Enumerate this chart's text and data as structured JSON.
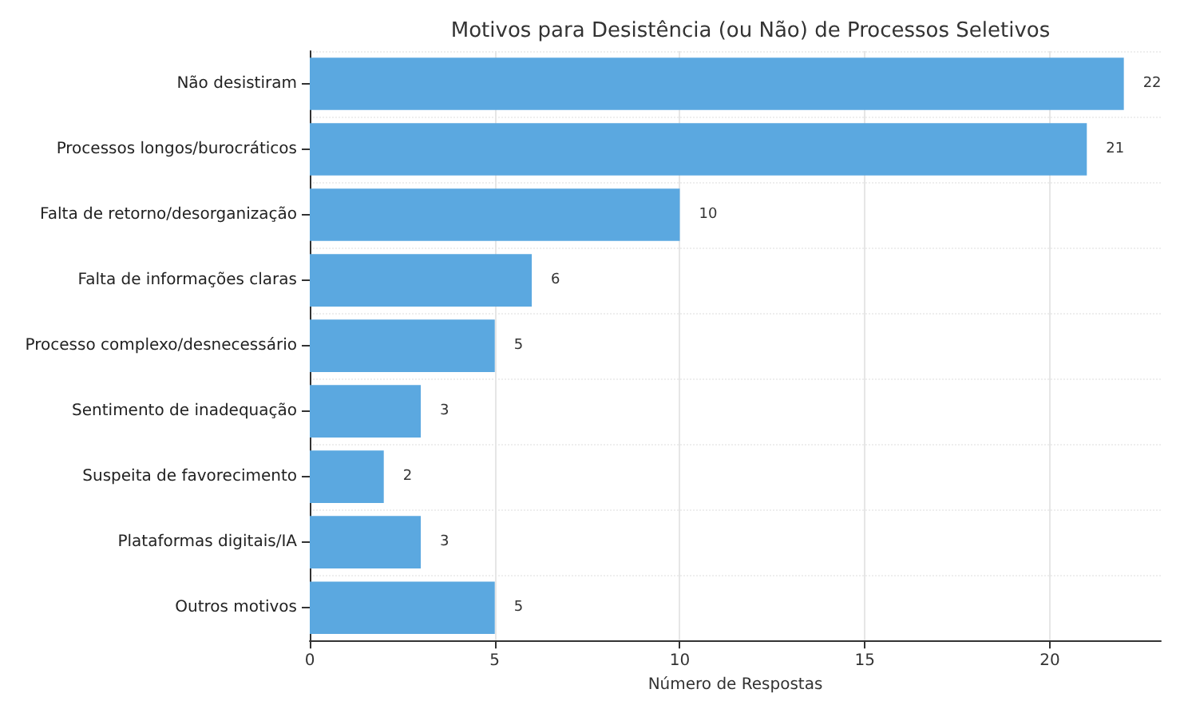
{
  "chart_data": {
    "type": "bar",
    "orientation": "horizontal",
    "title": "Motivos para Desistência (ou Não) de Processos Seletivos",
    "xlabel": "Número de Respostas",
    "categories": [
      "Não desistiram",
      "Processos longos/burocráticos",
      "Falta de retorno/desorganização",
      "Falta de informações claras",
      "Processo complexo/desnecessário",
      "Sentimento de inadequação",
      "Suspeita de favorecimento",
      "Plataformas digitais/IA",
      "Outros motivos"
    ],
    "values": [
      22,
      21,
      10,
      6,
      5,
      3,
      2,
      3,
      5
    ],
    "color": "#5ba8e0",
    "xlim": [
      0,
      23
    ],
    "xticks": [
      0,
      5,
      10,
      15,
      20
    ],
    "grid": true,
    "data_labels": true
  }
}
